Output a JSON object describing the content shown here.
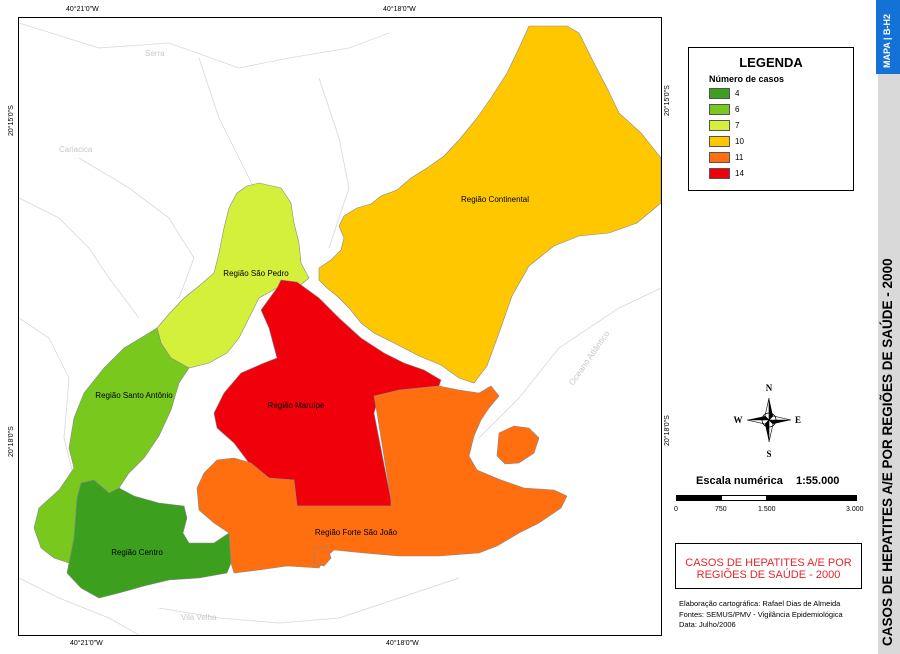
{
  "map": {
    "coords_top": [
      "40°21'0\"W",
      "40°18'0\"W"
    ],
    "coords_bottom": [
      "40°21'0\"W",
      "40°18'0\"W"
    ],
    "coords_left": [
      "20°15'0\"S",
      "20°18'0\"S"
    ],
    "coords_right": [
      "20°15'0\"S",
      "20°18'0\"S"
    ],
    "places": {
      "serra": "Serra",
      "cariacica": "Cariacica",
      "vila_velha": "Vila Velha",
      "ocean": "Oceano Atlântico"
    },
    "regions": [
      {
        "name": "Região Continental",
        "cases": 10,
        "color": "#ffc700"
      },
      {
        "name": "Região São Pedro",
        "cases": 7,
        "color": "#d4f03a"
      },
      {
        "name": "Região Maruípe",
        "cases": 14,
        "color": "#f0000a"
      },
      {
        "name": "Região Santo Antônio",
        "cases": 6,
        "color": "#78c81e"
      },
      {
        "name": "Região Forte São João",
        "cases": 11,
        "color": "#ff6e0f"
      },
      {
        "name": "Região Centro",
        "cases": 4,
        "color": "#3ca01e"
      }
    ]
  },
  "legend": {
    "title": "LEGENDA",
    "subtitle": "Número de casos",
    "items": [
      {
        "label": "4",
        "color": "#3ca01e"
      },
      {
        "label": "6",
        "color": "#78c81e"
      },
      {
        "label": "7",
        "color": "#d4f03a"
      },
      {
        "label": "10",
        "color": "#ffc700"
      },
      {
        "label": "11",
        "color": "#ff6e0f"
      },
      {
        "label": "14",
        "color": "#f0000a"
      }
    ]
  },
  "compass": {
    "n": "N",
    "s": "S",
    "e": "E",
    "w": "W"
  },
  "scale": {
    "title": "Escala numérica",
    "ratio": "1:55.000",
    "labels": [
      "0",
      "750",
      "1.500",
      "3.000"
    ]
  },
  "title_box": {
    "line1": "CASOS DE HEPATITES A/E POR",
    "line2": "REGIÕES DE SAÚDE - 2000"
  },
  "credits": [
    "Elaboração cartográfica: Rafael Dias de Almeida",
    "Fontes: SEMUS/PMV - Vigilância Epidemiológica",
    "Data: Julho/2006"
  ],
  "sidebar": {
    "tab": "MAPA | B-H2",
    "title": "CASOS DE HEPATITES A/E POR REGIÕES DE SAÚDE - 2000"
  }
}
